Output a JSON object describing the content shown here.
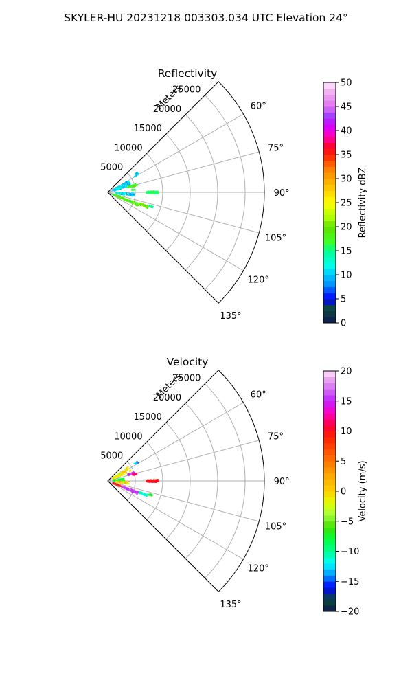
{
  "figure": {
    "title": "SKYLER-HU  20231218  003303.034 UTC Elevation 24°"
  },
  "chart_data": [
    {
      "type": "scatter",
      "subtype": "radar-ppi-sector",
      "title": "Reflectivity",
      "r_label": "Meters",
      "r_ticks": [
        5000,
        10000,
        15000,
        20000,
        25000
      ],
      "r_tick_labels": [
        "5000",
        "10000",
        "15000",
        "20000",
        "25000"
      ],
      "r_max": 28500,
      "theta_range_deg": [
        45,
        135
      ],
      "theta_ticks_deg": [
        60,
        75,
        90,
        105,
        120,
        135
      ],
      "theta_tick_labels": [
        "60°",
        "75°",
        "90°",
        "105°",
        "120°",
        "135°"
      ],
      "grid": true,
      "colorbar": {
        "label": "Reflectivity dBZ",
        "min": 0,
        "max": 50,
        "ticks": [
          0,
          5,
          10,
          15,
          20,
          25,
          30,
          35,
          40,
          45,
          50
        ],
        "tick_labels": [
          "0",
          "5",
          "10",
          "15",
          "20",
          "25",
          "30",
          "35",
          "40",
          "45",
          "50"
        ],
        "stops": [
          {
            "v": 0,
            "color": "#0d1a4f"
          },
          {
            "v": 3,
            "color": "#0d4a3a"
          },
          {
            "v": 5,
            "color": "#0000ff"
          },
          {
            "v": 8,
            "color": "#0090ff"
          },
          {
            "v": 10,
            "color": "#00c8ff"
          },
          {
            "v": 12,
            "color": "#00ffe8"
          },
          {
            "v": 15,
            "color": "#00ff90"
          },
          {
            "v": 17,
            "color": "#40ff20"
          },
          {
            "v": 20,
            "color": "#60e000"
          },
          {
            "v": 22,
            "color": "#b0ff00"
          },
          {
            "v": 25,
            "color": "#ffff00"
          },
          {
            "v": 28,
            "color": "#ffc800"
          },
          {
            "v": 32,
            "color": "#ff8000"
          },
          {
            "v": 35,
            "color": "#ff2000"
          },
          {
            "v": 37,
            "color": "#ff0040"
          },
          {
            "v": 39,
            "color": "#ff00c0"
          },
          {
            "v": 41,
            "color": "#d000ff"
          },
          {
            "v": 43,
            "color": "#a040ff"
          },
          {
            "v": 45,
            "color": "#e070f0"
          },
          {
            "v": 48,
            "color": "#f0b0f0"
          },
          {
            "v": 50,
            "color": "#ffe8ff"
          }
        ]
      },
      "clusters": [
        {
          "theta": 68,
          "r": [
            1000,
            4500
          ],
          "spread": 15,
          "n": 110,
          "value_range": [
            8,
            13
          ]
        },
        {
          "theta": 58,
          "r": [
            5600,
            6600
          ],
          "spread": 4,
          "n": 14,
          "value_range": [
            8,
            12
          ]
        },
        {
          "theta": 75,
          "r": [
            3800,
            5300
          ],
          "spread": 3.5,
          "n": 35,
          "value_range": [
            16,
            20
          ]
        },
        {
          "theta": 76,
          "r": [
            4500,
            5500
          ],
          "spread": 3,
          "n": 12,
          "value_range": [
            16,
            20
          ]
        },
        {
          "theta": 84,
          "r": [
            4400,
            5000
          ],
          "spread": 1.5,
          "n": 10,
          "value_range": [
            14,
            18
          ]
        },
        {
          "theta": 90,
          "r": [
            7000,
            9200
          ],
          "spread": 3,
          "n": 85,
          "value_range": [
            13,
            18
          ]
        },
        {
          "theta": 95,
          "r": [
            1500,
            4800
          ],
          "spread": 7,
          "n": 90,
          "value_range": [
            8,
            14
          ]
        },
        {
          "theta": 112,
          "r": [
            1000,
            6000
          ],
          "spread": 5,
          "n": 120,
          "value_range": [
            16,
            21
          ]
        },
        {
          "theta": 110,
          "r": [
            6000,
            7800
          ],
          "spread": 3,
          "n": 45,
          "value_range": [
            18,
            22
          ]
        },
        {
          "theta": 108,
          "r": [
            7800,
            8600
          ],
          "spread": 2,
          "n": 14,
          "value_range": [
            13,
            16
          ]
        }
      ]
    },
    {
      "type": "scatter",
      "subtype": "radar-ppi-sector",
      "title": "Velocity",
      "r_label": "Meters",
      "r_ticks": [
        5000,
        10000,
        15000,
        20000,
        25000
      ],
      "r_tick_labels": [
        "5000",
        "10000",
        "15000",
        "20000",
        "25000"
      ],
      "r_max": 28500,
      "theta_range_deg": [
        45,
        135
      ],
      "theta_ticks_deg": [
        60,
        75,
        90,
        105,
        120,
        135
      ],
      "theta_tick_labels": [
        "60°",
        "75°",
        "90°",
        "105°",
        "120°",
        "135°"
      ],
      "grid": true,
      "colorbar": {
        "label": "Velocity (m/s)",
        "min": -20,
        "max": 20,
        "ticks": [
          -20,
          -15,
          -10,
          -5,
          0,
          5,
          10,
          15,
          20
        ],
        "tick_labels": [
          "−20",
          "−15",
          "−10",
          "−5",
          "0",
          "5",
          "10",
          "15",
          "20"
        ],
        "stops": [
          {
            "v": -20,
            "color": "#0d1a4f"
          },
          {
            "v": -18,
            "color": "#0d4a3a"
          },
          {
            "v": -16,
            "color": "#0000ff"
          },
          {
            "v": -14,
            "color": "#0090ff"
          },
          {
            "v": -12,
            "color": "#00ffff"
          },
          {
            "v": -10,
            "color": "#00ff90"
          },
          {
            "v": -8,
            "color": "#00ff40"
          },
          {
            "v": -6,
            "color": "#40e000"
          },
          {
            "v": -4,
            "color": "#a0ff40"
          },
          {
            "v": -2,
            "color": "#e0ff00"
          },
          {
            "v": 0,
            "color": "#ffd000"
          },
          {
            "v": 3,
            "color": "#ffa000"
          },
          {
            "v": 6,
            "color": "#ff6000"
          },
          {
            "v": 9,
            "color": "#ff2000"
          },
          {
            "v": 11,
            "color": "#ff0040"
          },
          {
            "v": 13,
            "color": "#ff00c0"
          },
          {
            "v": 15,
            "color": "#c020ff"
          },
          {
            "v": 17,
            "color": "#d070f0"
          },
          {
            "v": 19,
            "color": "#f0b0f0"
          },
          {
            "v": 20,
            "color": "#ffe8ff"
          }
        ]
      },
      "clusters": [
        {
          "theta": 62,
          "r": [
            1000,
            4500
          ],
          "spread": 14,
          "n": 80,
          "value_range": [
            -3,
            2
          ]
        },
        {
          "theta": 85,
          "r": [
            800,
            3000
          ],
          "spread": 8,
          "n": 60,
          "value_range": [
            -10,
            -6
          ]
        },
        {
          "theta": 58,
          "r": [
            5600,
            6600
          ],
          "spread": 3,
          "n": 8,
          "value_range": [
            -15,
            -12
          ]
        },
        {
          "theta": 73,
          "r": [
            3800,
            5300
          ],
          "spread": 3.5,
          "n": 28,
          "value_range": [
            14,
            17
          ]
        },
        {
          "theta": 76,
          "r": [
            4500,
            5500
          ],
          "spread": 3,
          "n": 10,
          "value_range": [
            10,
            12
          ]
        },
        {
          "theta": 90,
          "r": [
            7000,
            9200
          ],
          "spread": 3,
          "n": 85,
          "value_range": [
            9,
            11
          ]
        },
        {
          "theta": 95,
          "r": [
            1500,
            4000
          ],
          "spread": 7,
          "n": 50,
          "value_range": [
            -4,
            3
          ]
        },
        {
          "theta": 112,
          "r": [
            1000,
            2800
          ],
          "spread": 5,
          "n": 40,
          "value_range": [
            7,
            11
          ]
        },
        {
          "theta": 112,
          "r": [
            2800,
            6000
          ],
          "spread": 5,
          "n": 80,
          "value_range": [
            14,
            17
          ]
        },
        {
          "theta": 110,
          "r": [
            6000,
            7800
          ],
          "spread": 3,
          "n": 35,
          "value_range": [
            -12,
            -10
          ]
        },
        {
          "theta": 108,
          "r": [
            7800,
            8600
          ],
          "spread": 2,
          "n": 14,
          "value_range": [
            -8,
            -6
          ]
        }
      ]
    }
  ]
}
